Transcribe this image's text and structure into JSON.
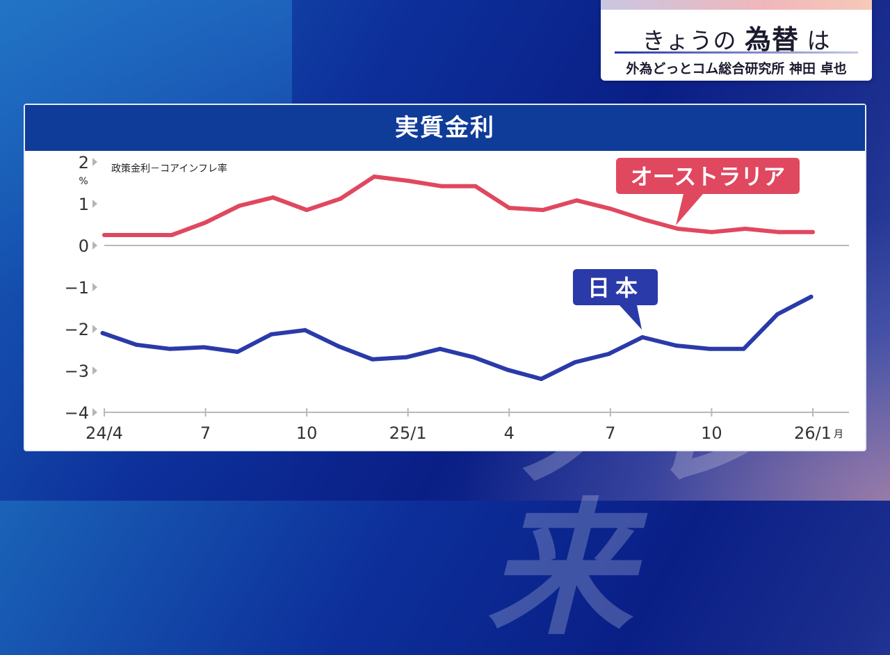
{
  "topic": {
    "title_prefix": "きょうの",
    "title_emph": "為替",
    "title_suffix": "は",
    "subtitle": "外為どっとコム総合研究所 神田 卓也"
  },
  "watermark": "ソレ来",
  "panel_title": "実質金利",
  "chart_data": {
    "type": "line",
    "title": "実質金利",
    "note": "政策金利－コアインフレ率",
    "y_unit": "%",
    "ylim": [
      -4,
      2
    ],
    "yticks": [
      2,
      1,
      0,
      -1,
      -2,
      -3,
      -4
    ],
    "ytick_labels": [
      "2",
      "1",
      "0",
      "−1",
      "−2",
      "−3",
      "−4"
    ],
    "x": [
      "2024-04",
      "2024-05",
      "2024-06",
      "2024-07",
      "2024-08",
      "2024-09",
      "2024-10",
      "2024-11",
      "2024-12",
      "2025-01",
      "2025-02",
      "2025-03",
      "2025-04",
      "2025-05",
      "2025-06",
      "2025-07",
      "2025-08",
      "2025-09",
      "2025-10",
      "2025-11",
      "2025-12",
      "2026-01"
    ],
    "xtick_labels": [
      {
        "index": 0,
        "label": "24/4"
      },
      {
        "index": 3,
        "label": "7"
      },
      {
        "index": 6,
        "label": "10"
      },
      {
        "index": 9,
        "label": "25/1"
      },
      {
        "index": 12,
        "label": "4"
      },
      {
        "index": 15,
        "label": "7"
      },
      {
        "index": 18,
        "label": "10"
      },
      {
        "index": 21,
        "label": "26/1",
        "suffix": "月"
      }
    ],
    "grid": false,
    "series": [
      {
        "name": "オーストラリア",
        "color": "#e0485f",
        "x_start": 0,
        "values": [
          0.25,
          0.25,
          0.25,
          0.55,
          0.95,
          1.15,
          0.85,
          1.12,
          1.65,
          1.55,
          1.42,
          1.42,
          0.9,
          0.85,
          1.08,
          0.88,
          0.62,
          0.4,
          0.32,
          0.4,
          0.32,
          0.32
        ]
      },
      {
        "name": "日本",
        "color": "#2a3aa9",
        "x_start": -0.05,
        "values": [
          -2.1,
          -2.38,
          -2.48,
          -2.44,
          -2.55,
          -2.13,
          -2.03,
          -2.42,
          -2.73,
          -2.68,
          -2.48,
          -2.68,
          -2.98,
          -3.2,
          -2.8,
          -2.6,
          -2.2,
          -2.4,
          -2.48,
          -2.48,
          -1.65,
          -1.23
        ]
      }
    ]
  }
}
